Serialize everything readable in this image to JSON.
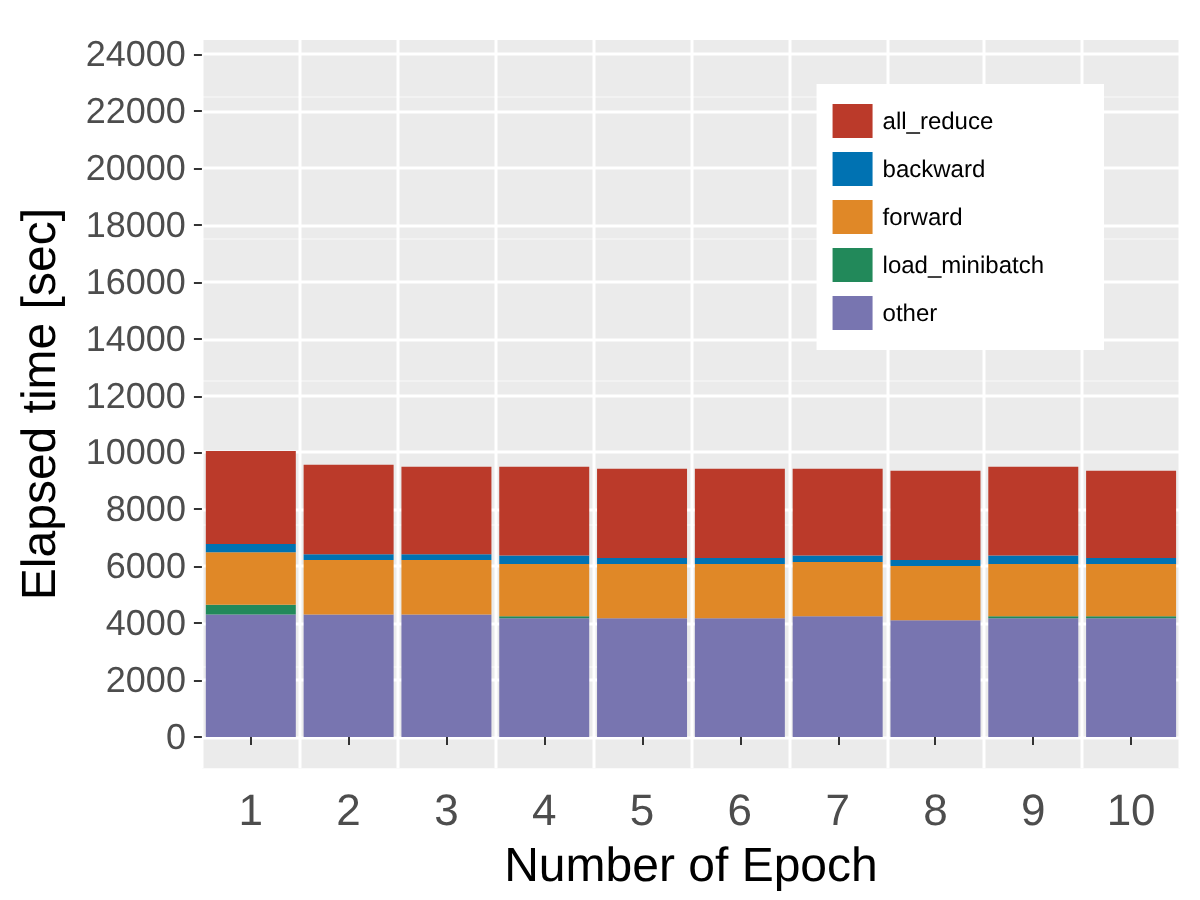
{
  "chart_data": {
    "type": "bar",
    "stacked": true,
    "xlabel": "Number of Epoch",
    "ylabel": "Elapsed time [sec]",
    "categories": [
      "1",
      "2",
      "3",
      "4",
      "5",
      "6",
      "7",
      "8",
      "9",
      "10"
    ],
    "series": [
      {
        "name": "other",
        "color": "#7875b0",
        "values": [
          4300,
          4300,
          4300,
          4170,
          4170,
          4170,
          4240,
          4100,
          4170,
          4170
        ]
      },
      {
        "name": "load_minibatch",
        "color": "#22895a",
        "values": [
          350,
          0,
          0,
          70,
          0,
          0,
          0,
          0,
          70,
          70
        ]
      },
      {
        "name": "forward",
        "color": "#e08827",
        "values": [
          1840,
          1920,
          1920,
          1840,
          1910,
          1910,
          1910,
          1910,
          1840,
          1840
        ]
      },
      {
        "name": "backward",
        "color": "#0072b2",
        "values": [
          290,
          200,
          200,
          300,
          210,
          210,
          230,
          210,
          300,
          210
        ]
      },
      {
        "name": "all_reduce",
        "color": "#bb3a2a",
        "values": [
          3270,
          3150,
          3080,
          3120,
          3140,
          3140,
          3050,
          3140,
          3120,
          3070
        ]
      }
    ],
    "ylim": [
      -1100,
      24500
    ],
    "yticks": [
      0,
      2000,
      4000,
      6000,
      8000,
      10000,
      12000,
      14000,
      16000,
      18000,
      20000,
      22000,
      24000
    ],
    "grid": true,
    "legend": "top right"
  }
}
